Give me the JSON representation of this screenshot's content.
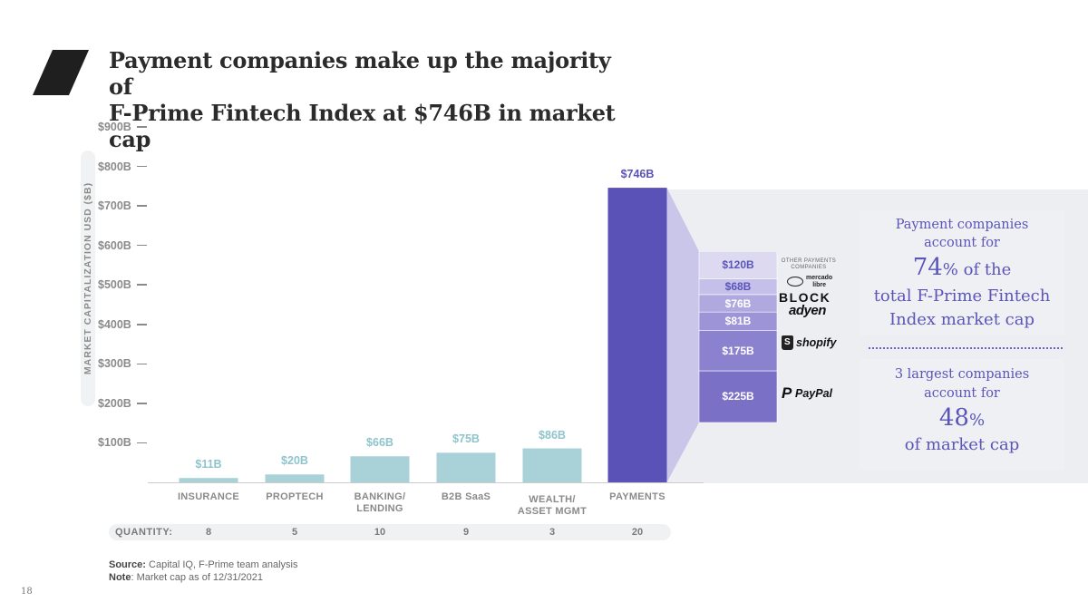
{
  "title_line1": "Payment companies make up the majority of",
  "title_line2": "F-Prime Fintech Index at $746B in market cap",
  "chart_data": {
    "type": "bar",
    "title": "Payment companies make up the majority of F-Prime Fintech Index at $746B in market cap",
    "ylabel": "MARKET CAPITALIZATION USD ($B)",
    "ylim": [
      0,
      900
    ],
    "y_ticks": [
      "$100B",
      "$200B",
      "$300B",
      "$400B",
      "$500B",
      "$600B",
      "$700B",
      "$800B",
      "$900B"
    ],
    "y_tick_values": [
      100,
      200,
      300,
      400,
      500,
      600,
      700,
      800,
      900
    ],
    "categories": [
      "INSURANCE",
      "PROPTECH",
      "BANKING/\nLENDING",
      "B2B SaaS",
      "WEALTH/\nASSET MGMT",
      "PAYMENTS"
    ],
    "values": [
      11,
      20,
      66,
      75,
      86,
      746
    ],
    "value_labels": [
      "$11B",
      "$20B",
      "$66B",
      "$75B",
      "$86B",
      "$746B"
    ],
    "quantity_label": "QUANTITY:",
    "quantities": [
      "8",
      "5",
      "10",
      "9",
      "3",
      "20"
    ],
    "colors": {
      "bar": "#a8d2d8",
      "bar_label": "#8fc4cc",
      "payments": "#5b52b8",
      "payments_label": "#5b52b8"
    },
    "payments_breakdown": [
      {
        "company": "PayPal",
        "value": 225,
        "label": "$225B",
        "color": "#7a70c6"
      },
      {
        "company": "Shopify",
        "value": 175,
        "label": "$175B",
        "color": "#8b82cf"
      },
      {
        "company": "Adyen",
        "value": 81,
        "label": "$81B",
        "color": "#9c94d7"
      },
      {
        "company": "Block",
        "value": 76,
        "label": "$76B",
        "color": "#b0a9e0"
      },
      {
        "company": "Mercado Libre",
        "value": 68,
        "label": "$68B",
        "color": "#c5c0ea"
      },
      {
        "company": "Other Payments Companies",
        "value": 120,
        "label": "$120B",
        "color": "#dcd9f1"
      }
    ]
  },
  "logos": {
    "other_line1": "OTHER PAYMENTS",
    "other_line2": "COMPANIES",
    "mercado_line1": "mercado",
    "mercado_line2": "libre",
    "block": "BLOCK",
    "adyen": "adyen",
    "shopify": "shopify",
    "paypal": "PayPal"
  },
  "callout_top": {
    "line1": "Payment companies",
    "line2": "account for",
    "big": "74",
    "pct_suffix": "% of the",
    "line4": "total F-Prime Fintech",
    "line5": "Index market cap"
  },
  "callout_bottom": {
    "line1": "3 largest companies",
    "line2": "account for",
    "big": "48",
    "pct": "%",
    "line4": "of market cap"
  },
  "source_label": "Source:",
  "source_text": " Capital IQ, F-Prime team analysis",
  "note_label": "Note",
  "note_text": ": Market cap as of 12/31/2021",
  "page_number": "18"
}
